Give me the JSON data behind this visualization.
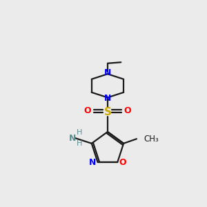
{
  "background_color": "#ebebeb",
  "bond_color": "#1a1a1a",
  "nitrogen_color": "#0000ff",
  "oxygen_color": "#ff0000",
  "sulfur_color": "#ccaa00",
  "nh2_color": "#5a9090",
  "figsize": [
    3.0,
    3.0
  ],
  "dpi": 100,
  "xlim": [
    0,
    10
  ],
  "ylim": [
    0,
    10
  ]
}
